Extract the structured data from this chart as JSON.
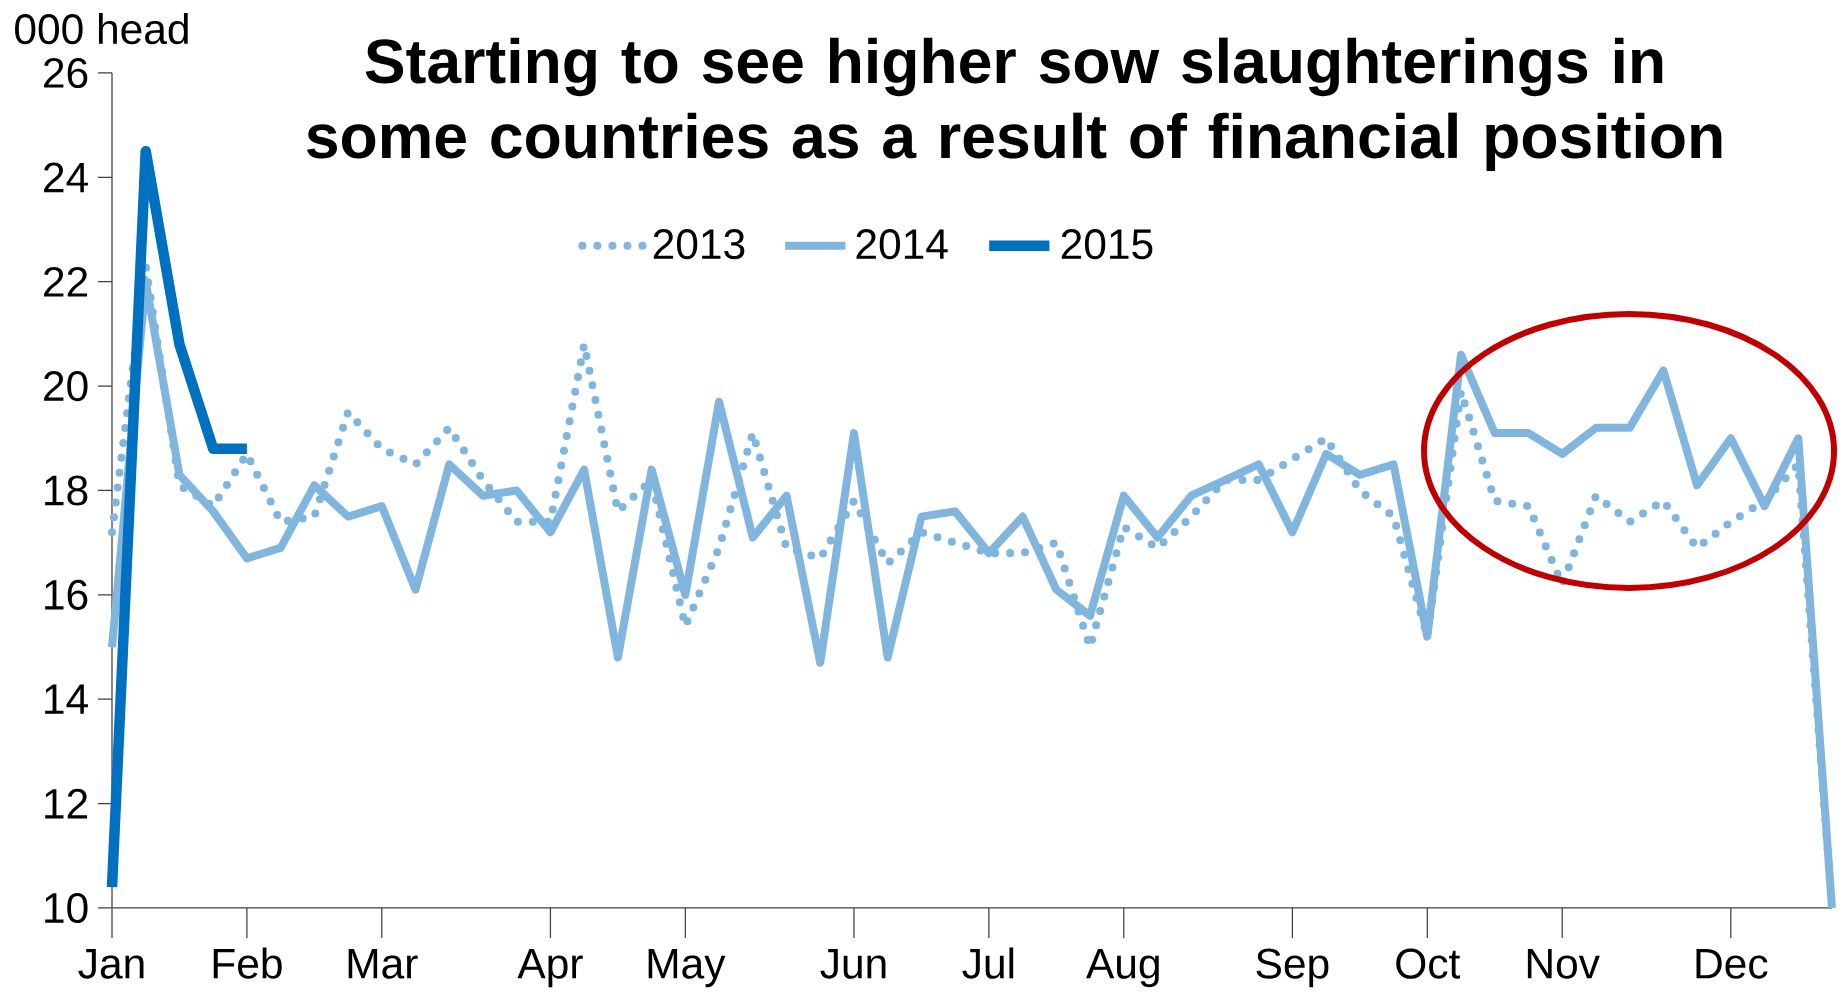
{
  "chart_data": {
    "type": "line",
    "title": "Starting to see higher sow slaughterings in some countries as a result of financial position",
    "ylabel": "000 head",
    "categories": [
      "Jan",
      null,
      null,
      null,
      "Feb",
      null,
      null,
      null,
      "Mar",
      null,
      null,
      null,
      null,
      "Apr",
      null,
      null,
      null,
      "May",
      null,
      null,
      null,
      null,
      "Jun",
      null,
      null,
      null,
      "Jul",
      null,
      null,
      null,
      "Aug",
      null,
      null,
      null,
      null,
      "Sep",
      null,
      null,
      null,
      "Oct",
      null,
      null,
      null,
      "Nov",
      null,
      null,
      null,
      null,
      "Dec",
      null,
      null,
      null
    ],
    "ylim": [
      10,
      26
    ],
    "yticks": [
      10,
      12,
      14,
      16,
      18,
      20,
      22,
      24,
      26
    ],
    "legend": "top",
    "series": [
      {
        "name": "2013",
        "color": "#80b6de",
        "line_style": "dotted",
        "values": [
          17.2,
          22.3,
          18.1,
          17.7,
          18.7,
          17.4,
          17.5,
          19.5,
          18.8,
          18.5,
          19.2,
          18.2,
          17.4,
          17.4,
          20.8,
          17.6,
          18.2,
          15.4,
          16.9,
          19.1,
          16.9,
          16.7,
          17.8,
          16.6,
          17.2,
          17.0,
          16.8,
          16.8,
          17.0,
          15.0,
          17.3,
          16.9,
          17.5,
          18.2,
          18.2,
          18.6,
          19.0,
          18.0,
          17.5,
          15.2,
          19.9,
          17.8,
          17.7,
          16.2,
          17.9,
          17.4,
          17.8,
          16.9,
          17.4,
          17.8,
          18.5,
          10.0
        ]
      },
      {
        "name": "2014",
        "color": "#80b6de",
        "line_style": "solid",
        "values": [
          15.0,
          22.0,
          18.3,
          17.6,
          16.7,
          16.9,
          18.1,
          17.5,
          17.7,
          16.1,
          18.5,
          17.9,
          18.0,
          17.2,
          18.4,
          14.8,
          18.4,
          16.0,
          19.7,
          17.1,
          17.9,
          14.7,
          19.1,
          14.8,
          17.5,
          17.6,
          16.8,
          17.5,
          16.1,
          15.6,
          17.9,
          17.1,
          17.9,
          18.2,
          18.5,
          17.2,
          18.7,
          18.3,
          18.5,
          15.2,
          20.6,
          19.1,
          19.1,
          18.7,
          19.2,
          19.2,
          20.3,
          18.1,
          19.0,
          17.7,
          19.0,
          10.0
        ]
      },
      {
        "name": "2015",
        "color": "#0070c0",
        "line_style": "solid",
        "values": [
          10.4,
          24.5,
          20.8,
          18.8,
          18.8,
          null,
          null,
          null,
          null,
          null,
          null,
          null,
          null,
          null,
          null,
          null,
          null,
          null,
          null,
          null,
          null,
          null,
          null,
          null,
          null,
          null,
          null,
          null,
          null,
          null,
          null,
          null,
          null,
          null,
          null,
          null,
          null,
          null,
          null,
          null,
          null,
          null,
          null,
          null,
          null,
          null,
          null,
          null,
          null,
          null,
          null,
          null
        ]
      }
    ]
  }
}
